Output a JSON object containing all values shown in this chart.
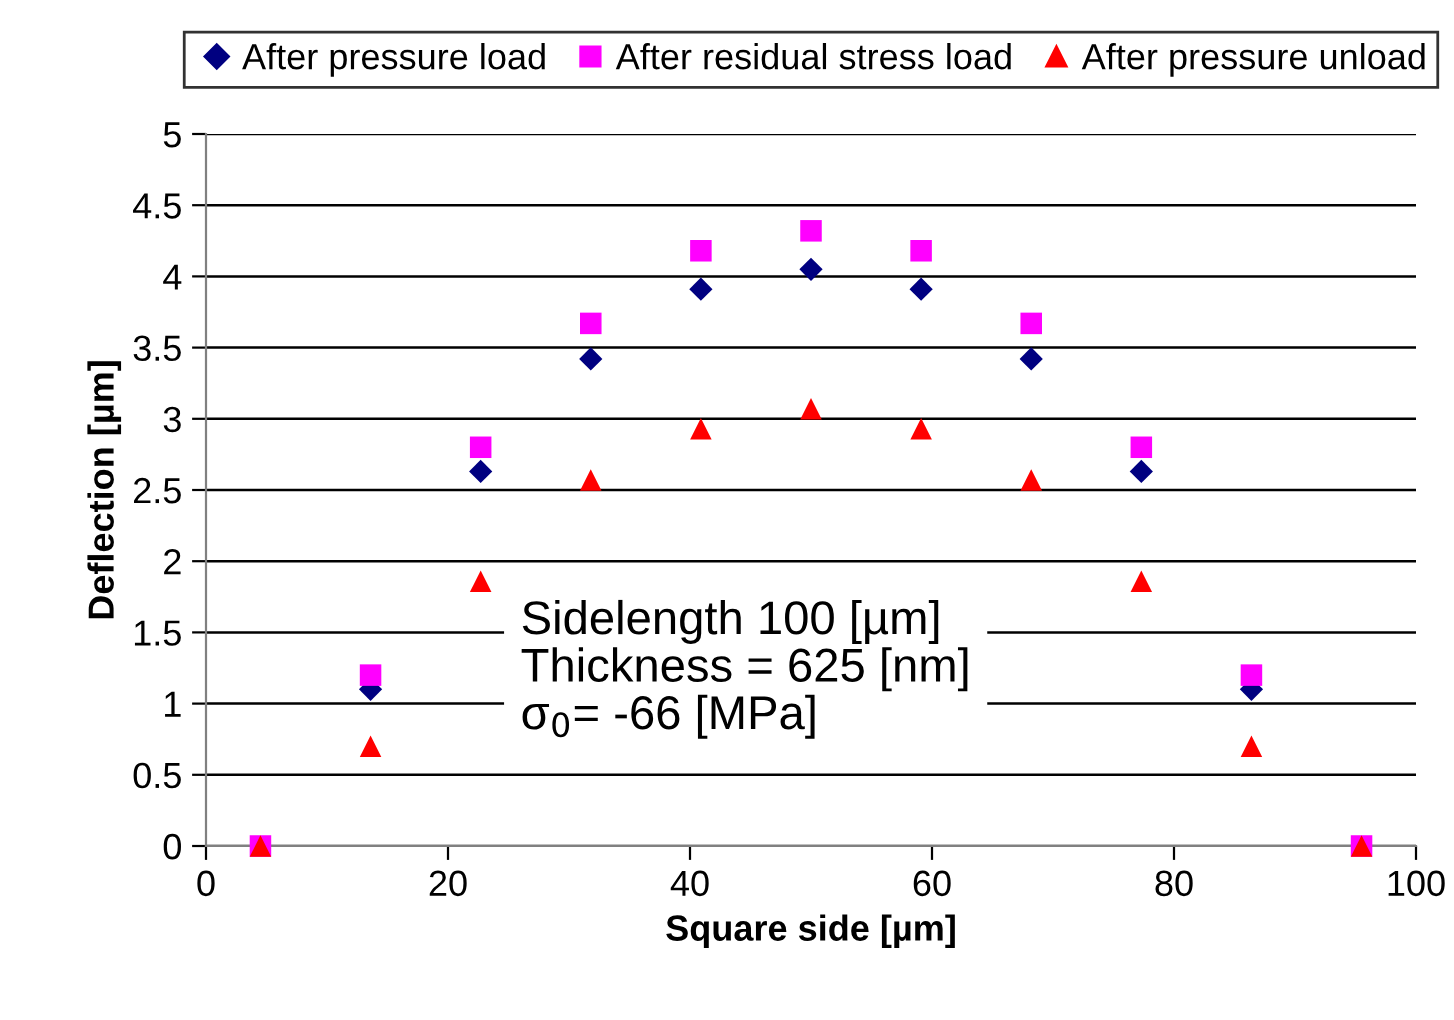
{
  "chart_data": {
    "type": "scatter",
    "xlabel": "Square side [µm]",
    "ylabel": "Deflection [µm]",
    "x": [
      4.5,
      13.6,
      22.7,
      31.8,
      40.9,
      50,
      59.1,
      68.2,
      77.3,
      86.4,
      95.5
    ],
    "series": [
      {
        "name": "After pressure load",
        "color": "#000080",
        "marker": "diamond",
        "values": [
          null,
          1.1,
          2.63,
          3.42,
          3.91,
          4.05,
          3.91,
          3.42,
          2.63,
          1.1,
          null
        ]
      },
      {
        "name": "After residual stress load",
        "color": "#ff00ff",
        "marker": "square",
        "values": [
          0,
          1.2,
          2.8,
          3.67,
          4.18,
          4.32,
          4.18,
          3.67,
          2.8,
          1.2,
          0
        ]
      },
      {
        "name": "After pressure unload",
        "color": "#ff0000",
        "marker": "triangle",
        "values": [
          0,
          0.7,
          1.86,
          2.57,
          2.93,
          3.07,
          2.93,
          2.57,
          1.86,
          0.7,
          0
        ]
      }
    ],
    "xlim": [
      0,
      100
    ],
    "xticks": [
      0,
      20,
      40,
      60,
      80,
      100
    ],
    "ylim": [
      0,
      5
    ],
    "yticks": [
      0,
      0.5,
      1,
      1.5,
      2,
      2.5,
      3,
      3.5,
      4,
      4.5,
      5
    ],
    "grid": "y",
    "legend": "top",
    "annotations": [
      "Sidelength 100 [µm]\nThickness = 625 [nm]\nσ$_{0}$= -66 [MPa]"
    ]
  }
}
